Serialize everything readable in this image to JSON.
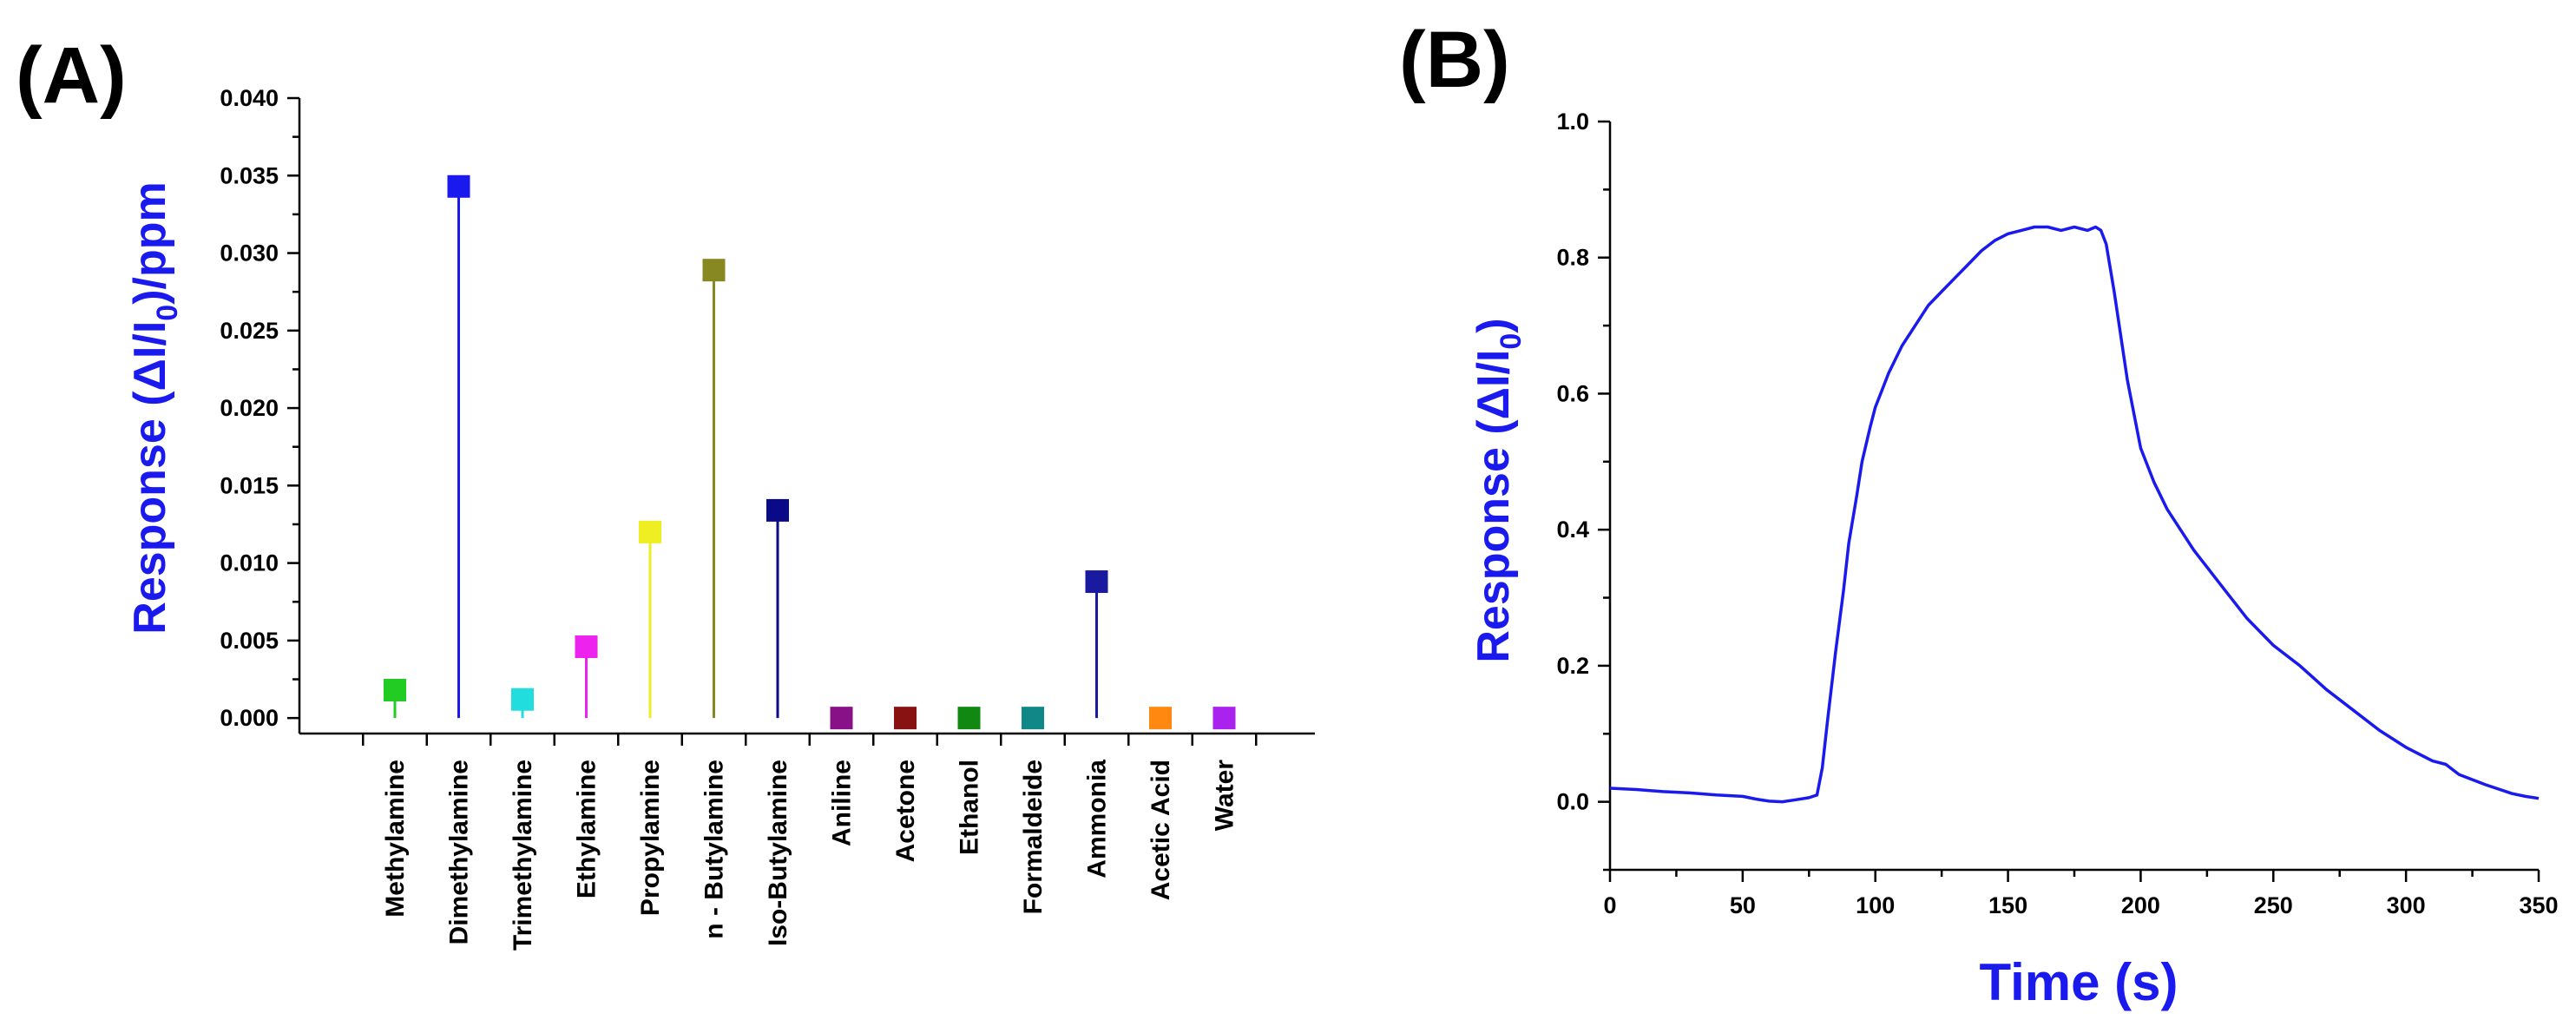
{
  "chart_data": [
    {
      "panel": "(A)",
      "type": "lollipop",
      "title": "",
      "xlabel": "",
      "ylabel": {
        "main": "Response (ΔI/I",
        "sub": "0",
        "tail": ")/ppm"
      },
      "ylim": [
        -0.001,
        0.04
      ],
      "yticks": [
        "0.000",
        "0.005",
        "0.010",
        "0.015",
        "0.020",
        "0.025",
        "0.030",
        "0.035",
        "0.040"
      ],
      "ytick_values": [
        0,
        0.005,
        0.01,
        0.015,
        0.02,
        0.025,
        0.03,
        0.035,
        0.04
      ],
      "categories": [
        "Methylamine",
        "Dimethylamine",
        "Trimethylamine",
        "Ethylamine",
        "Propylamine",
        "n - Butylamine",
        "Iso-Butylamine",
        "Aniline",
        "Acetone",
        "Ethanol",
        "Formaldeide",
        "Ammonia",
        "Acetic Acid",
        "Water"
      ],
      "values": [
        0.0018,
        0.0343,
        0.0012,
        0.0046,
        0.012,
        0.0289,
        0.0134,
        0.0,
        0.0,
        0.0,
        0.0,
        0.0088,
        0.0,
        0.0
      ],
      "colors": [
        "#22cc22",
        "#1a1aee",
        "#22dddd",
        "#ee22ee",
        "#eeee22",
        "#888822",
        "#0a0a88",
        "#881188",
        "#881111",
        "#118811",
        "#118888",
        "#1a1aa0",
        "#ff8811",
        "#aa22ee"
      ],
      "label_color": "#1a1aee"
    },
    {
      "panel": "(B)",
      "type": "line",
      "title": "",
      "xlabel": "Time (s)",
      "ylabel": {
        "main": "Response (ΔI/I",
        "sub": "0",
        "tail": ")"
      },
      "xlim": [
        0,
        350
      ],
      "ylim": [
        -0.1,
        1.0
      ],
      "xticks": [
        "0",
        "50",
        "100",
        "150",
        "200",
        "250",
        "300",
        "350"
      ],
      "xtick_values": [
        0,
        50,
        100,
        150,
        200,
        250,
        300,
        350
      ],
      "yticks": [
        "0.0",
        "0.2",
        "0.4",
        "0.6",
        "0.8",
        "1.0"
      ],
      "ytick_values": [
        0,
        0.2,
        0.4,
        0.6,
        0.8,
        1.0
      ],
      "series": [
        {
          "name": "Response",
          "color": "#1a1aee",
          "x": [
            0,
            10,
            20,
            30,
            40,
            50,
            55,
            60,
            65,
            70,
            75,
            78,
            80,
            82,
            85,
            88,
            90,
            93,
            95,
            98,
            100,
            103,
            105,
            110,
            115,
            120,
            125,
            130,
            135,
            140,
            145,
            150,
            155,
            160,
            165,
            170,
            175,
            180,
            183,
            185,
            187,
            190,
            195,
            200,
            205,
            210,
            220,
            230,
            240,
            250,
            260,
            270,
            280,
            290,
            300,
            310,
            315,
            320,
            330,
            340,
            345,
            350
          ],
          "y": [
            0.02,
            0.018,
            0.015,
            0.013,
            0.01,
            0.008,
            0.004,
            0.001,
            0.0,
            0.003,
            0.006,
            0.01,
            0.05,
            0.12,
            0.22,
            0.31,
            0.38,
            0.45,
            0.5,
            0.55,
            0.58,
            0.61,
            0.63,
            0.67,
            0.7,
            0.73,
            0.75,
            0.77,
            0.79,
            0.81,
            0.825,
            0.835,
            0.84,
            0.845,
            0.845,
            0.84,
            0.845,
            0.84,
            0.845,
            0.84,
            0.82,
            0.75,
            0.62,
            0.52,
            0.47,
            0.43,
            0.37,
            0.32,
            0.27,
            0.23,
            0.2,
            0.165,
            0.135,
            0.105,
            0.08,
            0.06,
            0.055,
            0.04,
            0.025,
            0.012,
            0.008,
            0.005
          ]
        }
      ]
    }
  ]
}
